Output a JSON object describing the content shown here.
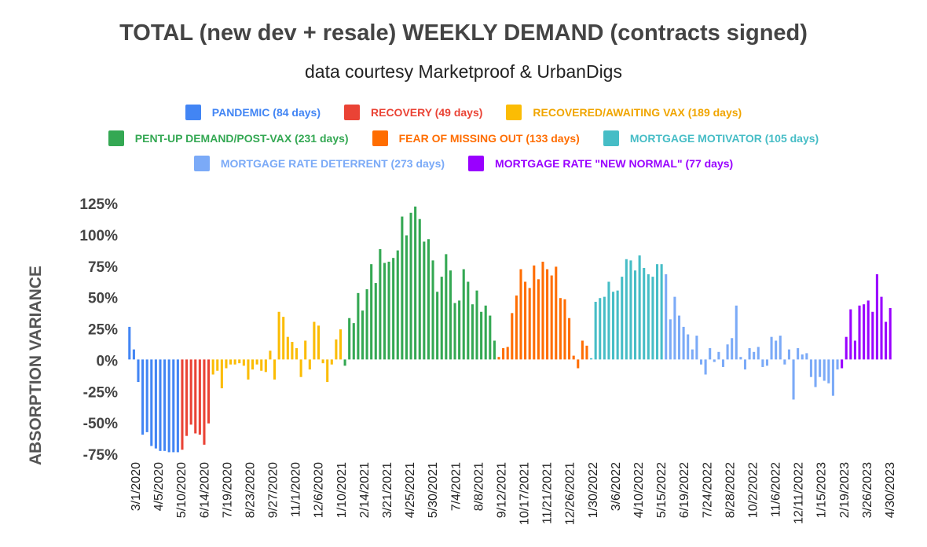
{
  "title": "TOTAL (new dev + resale) WEEKLY DEMAND (contracts signed)",
  "subtitle": "data courtesy Marketproof & UrbanDigs",
  "chart_data": {
    "type": "bar",
    "ylabel": "ABSORPTION VARIANCE",
    "ylim": [
      -75,
      125
    ],
    "yticks": [
      -75,
      -50,
      -25,
      0,
      25,
      50,
      75,
      100,
      125
    ],
    "ytick_labels": [
      "-75%",
      "-50%",
      "-25%",
      "0%",
      "25%",
      "50%",
      "75%",
      "100%",
      "125%"
    ],
    "xtick_labels": [
      "3/1/2020",
      "4/5/2020",
      "5/10/2020",
      "6/14/2020",
      "7/19/2020",
      "8/23/2020",
      "9/27/2020",
      "11/1/2020",
      "12/6/2020",
      "1/10/2021",
      "2/14/2021",
      "3/21/2021",
      "4/25/2021",
      "5/30/2021",
      "7/4/2021",
      "8/8/2021",
      "9/12/2021",
      "10/17/2021",
      "11/21/2021",
      "12/26/2021",
      "1/30/2022",
      "3/6/2022",
      "4/10/2022",
      "5/15/2022",
      "6/19/2022",
      "7/24/2022",
      "8/28/2022",
      "10/2/2022",
      "11/6/2022",
      "12/11/2022",
      "1/15/2023",
      "2/19/2023",
      "3/26/2023",
      "4/30/2023"
    ],
    "legend_rows": [
      [
        0,
        1,
        2
      ],
      [
        3,
        4,
        5
      ],
      [
        6,
        7
      ]
    ],
    "series": [
      {
        "name": "PANDEMIC (84 days)",
        "color": "#4285f4",
        "label_color": "#4285f4",
        "values": [
          26,
          8,
          -18,
          -60,
          -58,
          -69,
          -71,
          -73,
          -73,
          -74,
          -74,
          -74
        ]
      },
      {
        "name": "RECOVERY (49 days)",
        "color": "#ea4335",
        "label_color": "#ea4335",
        "values": [
          -72,
          -61,
          -52,
          -59,
          -60,
          -68,
          -51
        ]
      },
      {
        "name": "RECOVERED/AWAITING VAX (189 days)",
        "color": "#fbbc04",
        "label_color": "#f0a500",
        "values": [
          -12,
          -9,
          -23,
          -7,
          -4,
          -4,
          -3,
          -5,
          -16,
          -8,
          -4,
          -9,
          -10,
          7,
          -16,
          38,
          34,
          18,
          14,
          9,
          -14,
          15,
          -8,
          30,
          27,
          -3,
          -18,
          -4,
          16,
          24
        ]
      },
      {
        "name": "PENT-UP DEMAND/POST-VAX (231 days)",
        "color": "#34a853",
        "label_color": "#34a853",
        "values": [
          -5,
          33,
          29,
          53,
          39,
          56,
          76,
          61,
          88,
          77,
          78,
          81,
          87,
          114,
          99,
          117,
          122,
          112,
          94,
          96,
          79,
          54,
          66,
          84,
          71,
          45,
          47,
          72,
          62,
          44,
          55,
          38,
          43,
          35,
          15
        ]
      },
      {
        "name": "FEAR OF MISSING OUT (133 days)",
        "color": "#ff6d01",
        "label_color": "#ff6d01",
        "values": [
          2,
          9,
          10,
          37,
          51,
          72,
          62,
          57,
          75,
          64,
          78,
          72,
          67,
          74,
          49,
          48,
          33,
          3,
          -7,
          15,
          11
        ]
      },
      {
        "name": "MORTGAGE MOTIVATOR (105 days)",
        "color": "#46bdc6",
        "label_color": "#46bdc6",
        "values": [
          1,
          46,
          49,
          50,
          62,
          54,
          55,
          66,
          80,
          79,
          71,
          83,
          73,
          68,
          66,
          76,
          76
        ]
      },
      {
        "name": "MORTGAGE RATE DETERRENT (273 days)",
        "color": "#7baaf7",
        "label_color": "#7baaf7",
        "values": [
          68,
          32,
          50,
          35,
          26,
          20,
          8,
          19,
          -4,
          -12,
          9,
          -2,
          6,
          -6,
          12,
          17,
          43,
          2,
          -8,
          9,
          6,
          10,
          -6,
          -5,
          18,
          15,
          19,
          -4,
          8,
          -32,
          9,
          4,
          5,
          -14,
          -22,
          -14,
          -17,
          -19,
          -29,
          -8
        ]
      },
      {
        "name": "MORTGAGE RATE \"NEW NORMAL\" (77 days)",
        "color": "#9900ff",
        "label_color": "#9900ff",
        "values": [
          -7,
          18,
          40,
          15,
          43,
          44,
          47,
          38,
          68,
          50,
          30,
          41
        ]
      }
    ]
  }
}
